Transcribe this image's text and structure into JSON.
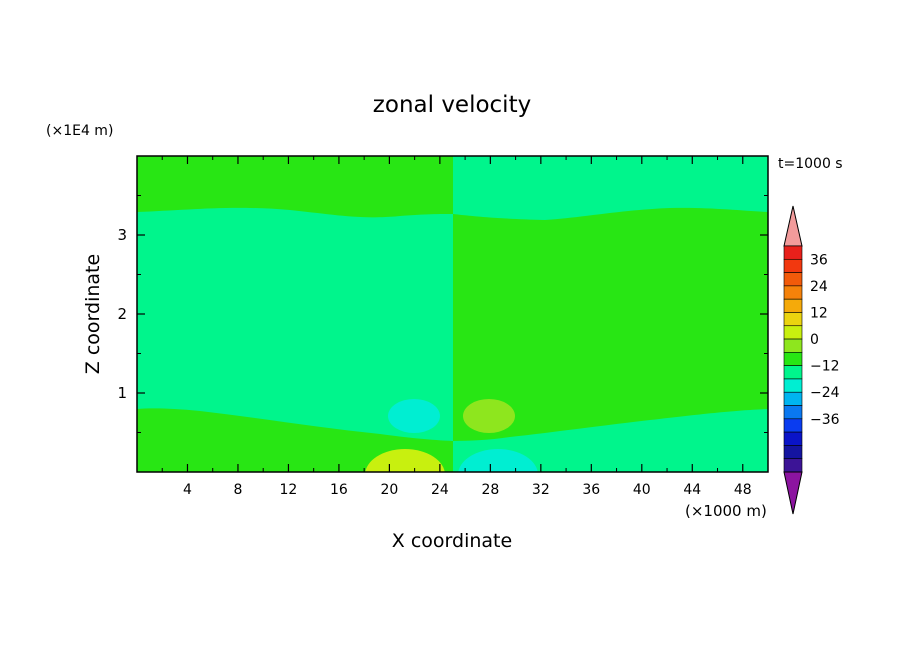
{
  "chart_data": {
    "type": "heatmap",
    "title": "zonal velocity",
    "xlabel": "X coordinate",
    "ylabel": "Z coordinate",
    "x_unit_label": "(×1000 m)",
    "y_unit_label": "(×1E4 m)",
    "time_label": "t=1000 s",
    "xlim": [
      0,
      50
    ],
    "ylim": [
      0,
      4
    ],
    "x_ticks": [
      "4",
      "8",
      "12",
      "16",
      "20",
      "24",
      "28",
      "32",
      "36",
      "40",
      "44",
      "48"
    ],
    "y_ticks": [
      "1",
      "2",
      "3"
    ],
    "colorbar": {
      "labels": [
        "36",
        "24",
        "12",
        "0",
        "-12",
        "-24",
        "-36"
      ],
      "levels": [
        42,
        36,
        30,
        24,
        18,
        12,
        6,
        0,
        -6,
        -12,
        -18,
        -24,
        -30,
        -36,
        -42
      ],
      "colors": [
        "#f29b9b",
        "#e8201b",
        "#f2380f",
        "#f25a0a",
        "#f5820a",
        "#f5aa0a",
        "#ebd40f",
        "#c8f00f",
        "#8ee61e",
        "#28e614",
        "#00f58c",
        "#00eed2",
        "#00b4f0",
        "#0a78f0",
        "#0a3cf0",
        "#0a14c8",
        "#1414a0",
        "#3c1496",
        "#8c14a0"
      ]
    },
    "regions": [
      {
        "label": "upper-left",
        "value": 3,
        "color": "#28e614"
      },
      {
        "label": "upper-right",
        "value": -3,
        "color": "#00f58c"
      },
      {
        "label": "middle-left",
        "value": -3,
        "color": "#00f58c"
      },
      {
        "label": "middle-right",
        "value": 3,
        "color": "#28e614"
      },
      {
        "label": "lower-left",
        "value": 3,
        "color": "#28e614"
      },
      {
        "label": "lower-right",
        "value": -3,
        "color": "#00f58c"
      },
      {
        "label": "blob-x22-z0.7",
        "value": -9,
        "color": "#00eed2"
      },
      {
        "label": "blob-x28-z0.7",
        "value": 9,
        "color": "#8ee61e"
      },
      {
        "label": "blob-x22-z0.1",
        "value": 15,
        "color": "#c8f00f"
      },
      {
        "label": "blob-x28-z0.1",
        "value": -9,
        "color": "#00eed2"
      }
    ]
  }
}
